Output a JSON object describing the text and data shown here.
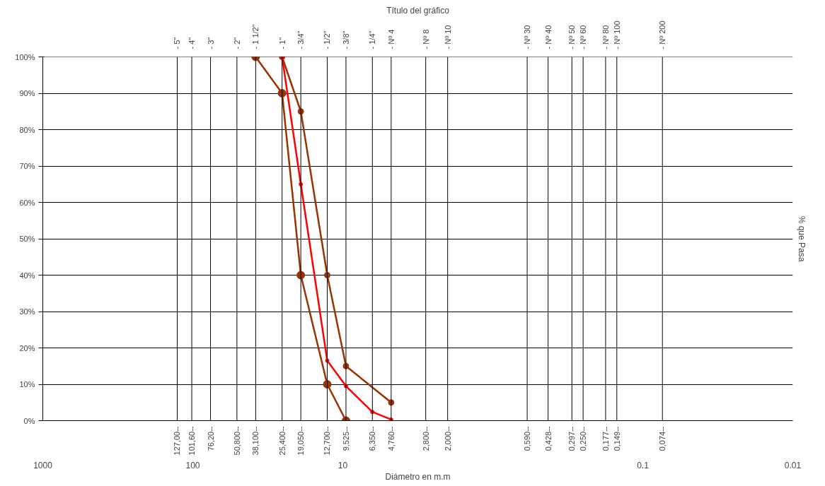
{
  "chart_data": {
    "type": "line",
    "title": "Título del gráfico",
    "xlabel": "Diámetro en m.m",
    "ylabel": "% que Pasa",
    "log": "x",
    "grid": "y",
    "marker": "circle",
    "line_style": "solid",
    "xlim": [
      1000,
      0.01
    ],
    "xticks": [
      1000,
      100,
      10,
      0.1,
      0.01
    ],
    "ylim": [
      0,
      100
    ],
    "yticks": [
      {
        "value": 0,
        "label": "0%"
      },
      {
        "value": 10,
        "label": "10%"
      },
      {
        "value": 20,
        "label": "20%"
      },
      {
        "value": 30,
        "label": "30%"
      },
      {
        "value": 40,
        "label": "40%"
      },
      {
        "value": 50,
        "label": "50%"
      },
      {
        "value": 60,
        "label": "60%"
      },
      {
        "value": 70,
        "label": "70%"
      },
      {
        "value": 80,
        "label": "80%"
      },
      {
        "value": 90,
        "label": "90%"
      },
      {
        "value": 100,
        "label": "100%"
      }
    ],
    "ref_lines": [
      {
        "axis": "x",
        "value": 127,
        "label": "127,00--",
        "color": "#000000"
      },
      {
        "axis": "x",
        "value": 101.6,
        "label": "101,60--",
        "color": "#000000"
      },
      {
        "axis": "x",
        "value": 76.2,
        "label": "76,20--",
        "color": "#000000"
      },
      {
        "axis": "x",
        "value": 50.8,
        "label": "50,800--",
        "color": "#000000"
      },
      {
        "axis": "x",
        "value": 38.1,
        "label": "38,100--",
        "color": "#000000"
      },
      {
        "axis": "x",
        "value": 25.4,
        "label": "25,400--",
        "color": "#000000"
      },
      {
        "axis": "x",
        "value": 19.05,
        "label": "19,050--",
        "color": "#000000"
      },
      {
        "axis": "x",
        "value": 12.7,
        "label": "12,700--",
        "color": "#000000"
      },
      {
        "axis": "x",
        "value": 9.525,
        "label": "9,525--",
        "color": "#000000"
      },
      {
        "axis": "x",
        "value": 6.35,
        "label": "6,350--",
        "color": "#000000"
      },
      {
        "axis": "x",
        "value": 4.76,
        "label": "4,760--",
        "color": "#000000"
      },
      {
        "axis": "x",
        "value": 2.8,
        "label": "2,800--",
        "color": "#000000"
      },
      {
        "axis": "x",
        "value": 2.0,
        "label": "2,000--",
        "color": "#000000"
      },
      {
        "axis": "x",
        "value": 0.59,
        "label": "0,590--",
        "color": "#000000"
      },
      {
        "axis": "x",
        "value": 0.428,
        "label": "0,428--",
        "color": "#000000"
      },
      {
        "axis": "x",
        "value": 0.297,
        "label": "0,297--",
        "color": "#000000"
      },
      {
        "axis": "x",
        "value": 0.25,
        "label": "0,250--",
        "color": "#000000"
      },
      {
        "axis": "x",
        "value": 0.177,
        "label": "0,177--",
        "color": "#000000"
      },
      {
        "axis": "x",
        "value": 0.149,
        "label": "0,149--",
        "color": "#000000"
      },
      {
        "axis": "x",
        "value": 0.074,
        "label": "0,074--",
        "color": "#000000"
      }
    ],
    "annotations": [
      "- 5\"",
      "- 4\"",
      "- 3\"",
      "- 2\"",
      "- 1 1/2\"",
      "- 1\"",
      "- 3/4\"",
      "- 1/2\"",
      "- 3/8\"",
      "- 1/4\"",
      "- Nº 4",
      "- Nº 8",
      "- Nº 10",
      "- Nº 30",
      "- Nº 40",
      "- Nº 50",
      "- Nº 60",
      "- Nº 80",
      "- Nº 100",
      "- Nº 200"
    ],
    "series": [
      {
        "color": "#993300",
        "x": [
          38.1,
          25.4,
          19.05,
          12.7,
          9.525
        ],
        "values": [
          100,
          90,
          40,
          10,
          0
        ]
      },
      {
        "color": "#993300",
        "x": [
          25.4,
          19.05,
          12.7,
          9.525,
          4.76
        ],
        "values": [
          100,
          85,
          40,
          15,
          5
        ]
      },
      {
        "color": "#ff0000",
        "x": [
          25.4,
          19.05,
          12.7,
          9.525,
          6.35,
          4.76
        ],
        "values": [
          100,
          65,
          16.5,
          9.5,
          2.4,
          0.3
        ]
      }
    ]
  }
}
